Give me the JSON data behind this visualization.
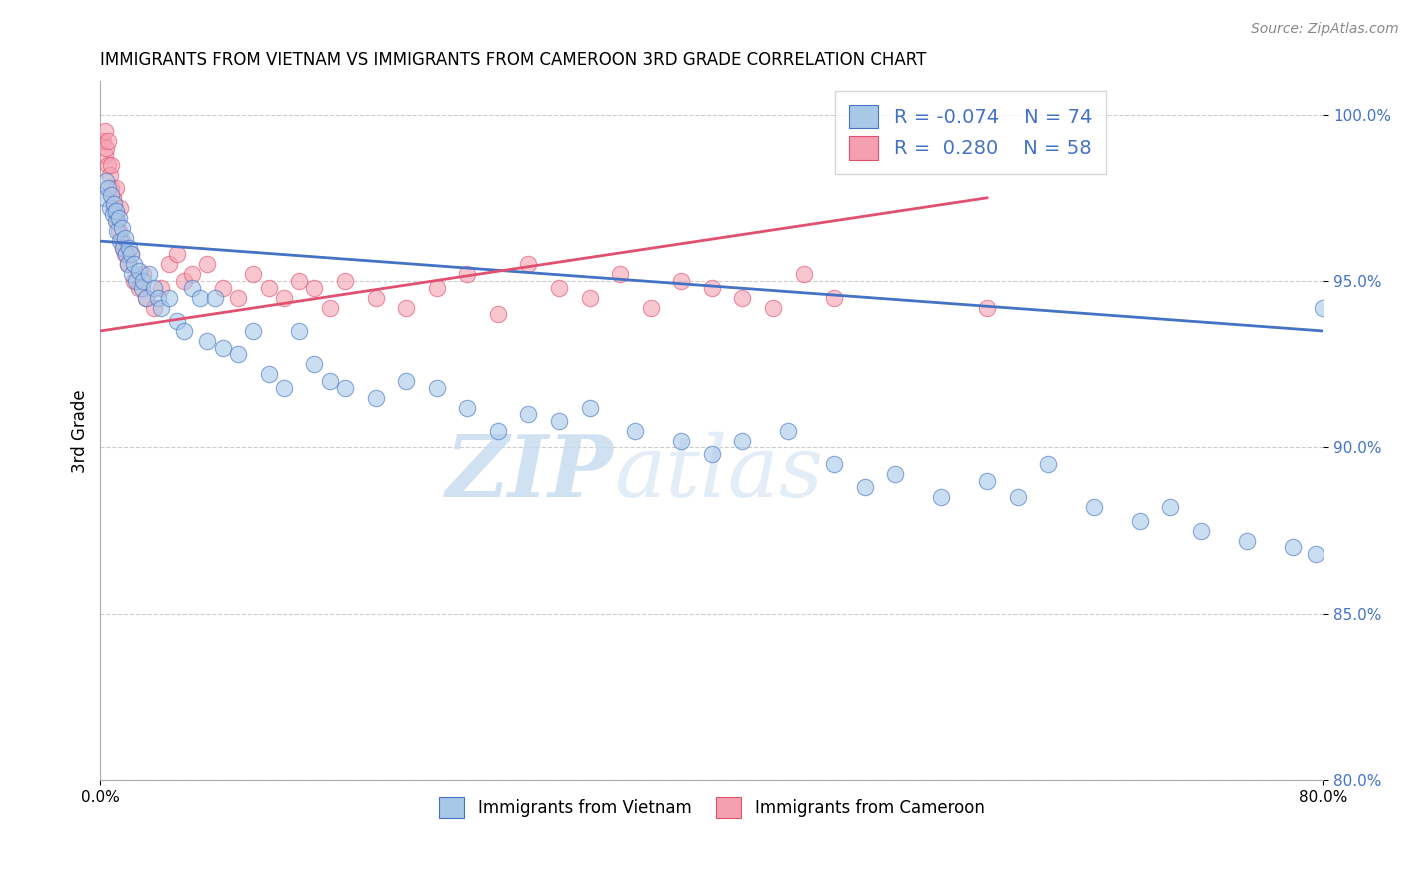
{
  "title": "IMMIGRANTS FROM VIETNAM VS IMMIGRANTS FROM CAMEROON 3RD GRADE CORRELATION CHART",
  "source_text": "Source: ZipAtlas.com",
  "ylabel": "3rd Grade",
  "watermark_zip": "ZIP",
  "watermark_atlas": "atlas",
  "xlim": [
    0.0,
    80.0
  ],
  "ylim": [
    80.0,
    101.0
  ],
  "yticks": [
    80.0,
    85.0,
    90.0,
    95.0,
    100.0
  ],
  "ytick_labels": [
    "80.0%",
    "85.0%",
    "90.0%",
    "95.0%",
    "100.0%"
  ],
  "vietnam_color": "#a8c8e8",
  "cameroon_color": "#f4a0b0",
  "vietnam_line_color": "#4472c4",
  "cameroon_line_color": "#e05070",
  "legend_color": "#4472c4",
  "vietnam_x": [
    0.3,
    0.4,
    0.5,
    0.6,
    0.7,
    0.8,
    0.9,
    1.0,
    1.0,
    1.1,
    1.2,
    1.3,
    1.4,
    1.5,
    1.6,
    1.7,
    1.8,
    1.9,
    2.0,
    2.1,
    2.2,
    2.3,
    2.5,
    2.7,
    2.8,
    3.0,
    3.2,
    3.5,
    3.8,
    4.0,
    4.5,
    5.0,
    5.5,
    6.0,
    6.5,
    7.0,
    7.5,
    8.0,
    9.0,
    10.0,
    11.0,
    12.0,
    13.0,
    14.0,
    15.0,
    16.0,
    18.0,
    20.0,
    22.0,
    24.0,
    26.0,
    28.0,
    30.0,
    32.0,
    35.0,
    38.0,
    40.0,
    42.0,
    45.0,
    48.0,
    50.0,
    52.0,
    55.0,
    58.0,
    60.0,
    62.0,
    65.0,
    68.0,
    70.0,
    72.0,
    75.0,
    78.0,
    79.5,
    80.0
  ],
  "vietnam_y": [
    97.5,
    98.0,
    97.8,
    97.2,
    97.6,
    97.0,
    97.3,
    96.8,
    97.1,
    96.5,
    96.9,
    96.2,
    96.6,
    96.0,
    96.3,
    95.8,
    95.5,
    96.0,
    95.8,
    95.2,
    95.5,
    95.0,
    95.3,
    94.8,
    95.0,
    94.5,
    95.2,
    94.8,
    94.5,
    94.2,
    94.5,
    93.8,
    93.5,
    94.8,
    94.5,
    93.2,
    94.5,
    93.0,
    92.8,
    93.5,
    92.2,
    91.8,
    93.5,
    92.5,
    92.0,
    91.8,
    91.5,
    92.0,
    91.8,
    91.2,
    90.5,
    91.0,
    90.8,
    91.2,
    90.5,
    90.2,
    89.8,
    90.2,
    90.5,
    89.5,
    88.8,
    89.2,
    88.5,
    89.0,
    88.5,
    89.5,
    88.2,
    87.8,
    88.2,
    87.5,
    87.2,
    87.0,
    86.8,
    94.2
  ],
  "cameroon_x": [
    0.2,
    0.3,
    0.3,
    0.4,
    0.5,
    0.5,
    0.6,
    0.7,
    0.7,
    0.8,
    0.9,
    1.0,
    1.0,
    1.1,
    1.2,
    1.3,
    1.4,
    1.5,
    1.6,
    1.8,
    2.0,
    2.2,
    2.5,
    2.8,
    3.0,
    3.5,
    4.0,
    4.5,
    5.0,
    5.5,
    6.0,
    7.0,
    8.0,
    9.0,
    10.0,
    11.0,
    12.0,
    13.0,
    14.0,
    15.0,
    16.0,
    18.0,
    20.0,
    22.0,
    24.0,
    26.0,
    28.0,
    30.0,
    32.0,
    34.0,
    36.0,
    38.0,
    40.0,
    42.0,
    44.0,
    46.0,
    48.0,
    58.0
  ],
  "cameroon_y": [
    99.2,
    99.5,
    98.8,
    99.0,
    98.5,
    99.2,
    98.2,
    97.8,
    98.5,
    97.5,
    97.2,
    97.8,
    97.0,
    96.8,
    96.5,
    97.2,
    96.2,
    96.0,
    95.8,
    95.5,
    95.8,
    95.0,
    94.8,
    95.2,
    94.5,
    94.2,
    94.8,
    95.5,
    95.8,
    95.0,
    95.2,
    95.5,
    94.8,
    94.5,
    95.2,
    94.8,
    94.5,
    95.0,
    94.8,
    94.2,
    95.0,
    94.5,
    94.2,
    94.8,
    95.2,
    94.0,
    95.5,
    94.8,
    94.5,
    95.2,
    94.2,
    95.0,
    94.8,
    94.5,
    94.2,
    95.2,
    94.5,
    94.2
  ]
}
